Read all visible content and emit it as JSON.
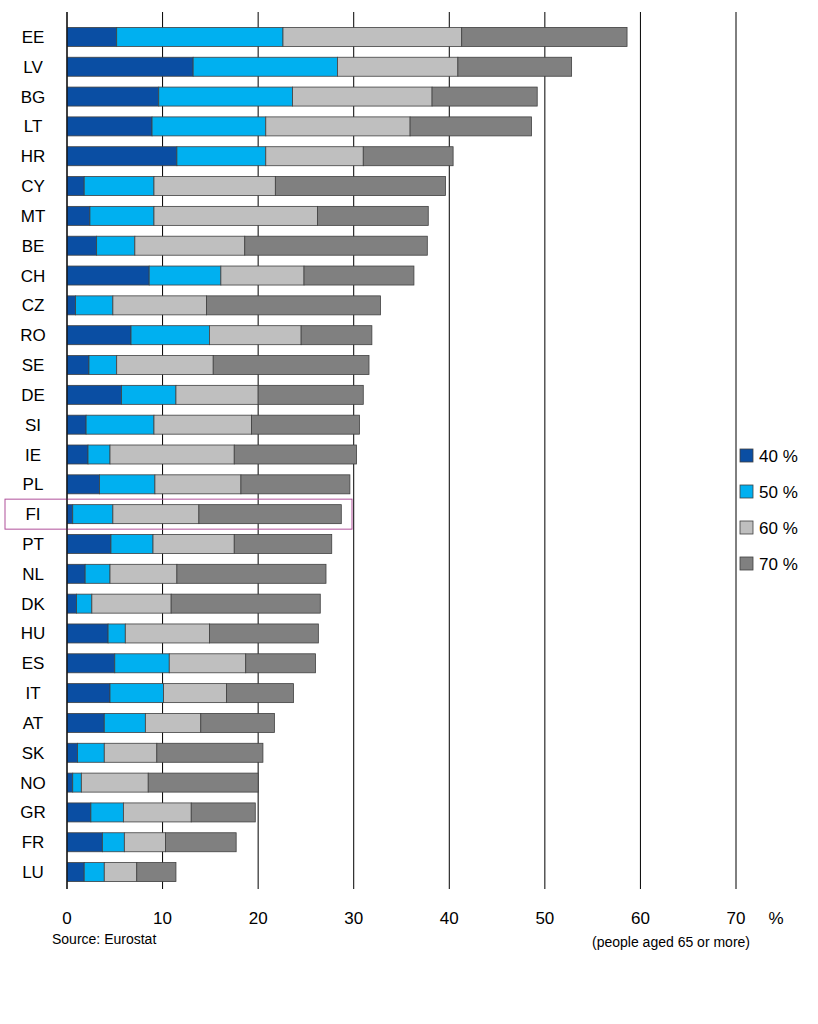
{
  "chart_data": {
    "type": "bar",
    "orientation": "horizontal",
    "stacked": true,
    "grid": true,
    "legend": "right",
    "x_label": "%",
    "source": "Source: Eurostat",
    "note": "(people aged 65 or more)",
    "categories": [
      "EE",
      "LV",
      "BG",
      "LT",
      "HR",
      "CY",
      "MT",
      "BE",
      "CH",
      "CZ",
      "RO",
      "SE",
      "DE",
      "SI",
      "IE",
      "PL",
      "FI",
      "PT",
      "NL",
      "DK",
      "HU",
      "ES",
      "IT",
      "AT",
      "SK",
      "NO",
      "GR",
      "FR",
      "LU"
    ],
    "xlim": [
      0,
      70
    ],
    "xticks": [
      0,
      10,
      20,
      30,
      40,
      50,
      60,
      70
    ],
    "series": [
      {
        "name": "40 %",
        "color": "#0a4ea3",
        "values": [
          5.2,
          13.2,
          9.6,
          8.9,
          11.5,
          1.8,
          2.4,
          3.1,
          8.6,
          0.9,
          6.7,
          2.3,
          5.7,
          2.0,
          2.2,
          3.4,
          0.6,
          4.6,
          1.9,
          1.0,
          4.3,
          5.0,
          4.5,
          3.9,
          1.1,
          0.6,
          2.5,
          3.7,
          1.8
        ]
      },
      {
        "name": "50 %",
        "color": "#00b0f0",
        "values": [
          17.4,
          15.1,
          14.0,
          11.9,
          9.3,
          7.3,
          6.7,
          4.0,
          7.5,
          3.9,
          8.2,
          2.9,
          5.7,
          7.1,
          2.3,
          5.8,
          4.2,
          4.4,
          2.6,
          1.6,
          1.8,
          5.7,
          5.6,
          4.3,
          2.8,
          0.9,
          3.4,
          2.3,
          2.1
        ]
      },
      {
        "name": "60 %",
        "color": "#bfbfbf",
        "values": [
          18.7,
          12.6,
          14.6,
          15.1,
          10.2,
          12.7,
          17.1,
          11.5,
          8.7,
          9.8,
          9.6,
          10.1,
          8.6,
          10.2,
          13.0,
          9.0,
          9.0,
          8.5,
          7.0,
          8.3,
          8.8,
          8.0,
          6.6,
          5.8,
          5.5,
          7.0,
          7.1,
          4.3,
          3.4
        ]
      },
      {
        "name": "70 %",
        "color": "#808080",
        "values": [
          17.3,
          11.9,
          11.0,
          12.7,
          9.4,
          17.8,
          11.6,
          19.1,
          11.5,
          18.2,
          7.4,
          16.3,
          11.0,
          11.3,
          12.8,
          11.4,
          14.9,
          10.2,
          15.6,
          15.6,
          11.4,
          7.3,
          7.0,
          7.7,
          11.1,
          11.5,
          6.7,
          7.4,
          4.1
        ]
      }
    ]
  }
}
